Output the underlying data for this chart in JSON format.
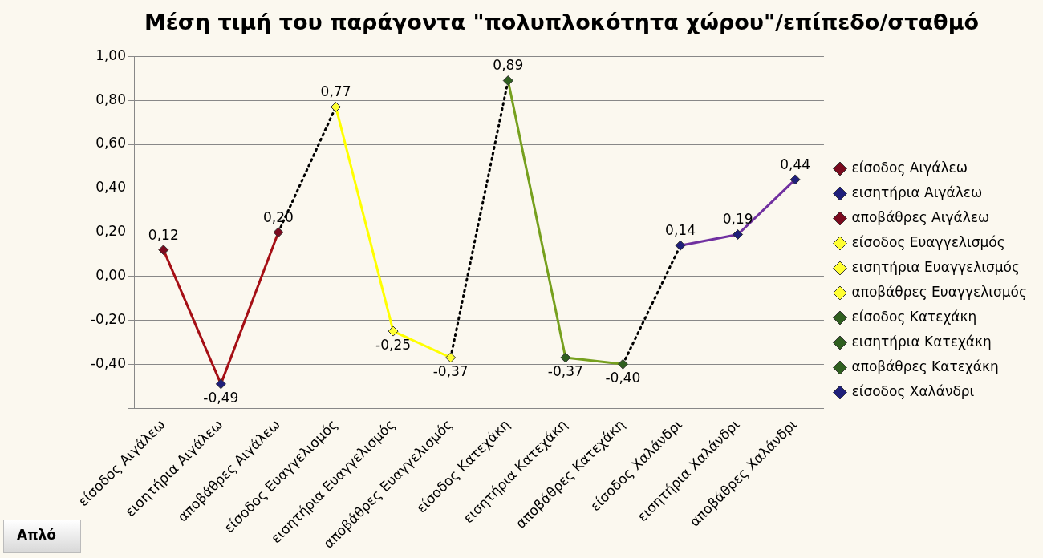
{
  "chart_data": {
    "type": "line",
    "title": "Μέση τιμή του παράγοντα \"πολυπλοκότητα χώρου\"/επίπεδο/σταθμό",
    "categories": [
      "είσοδος Αιγάλεω",
      "εισητήρια Αιγάλεω",
      "αποβάθρες Αιγάλεω",
      "είσοδος Ευαγγελισμός",
      "εισητήρια Ευαγγελισμός",
      "αποβάθρες Ευαγγελισμός",
      "είσοδος Κατεχάκη",
      "εισητήρια Κατεχάκη",
      "αποβάθρες Κατεχάκη",
      "είσοδος Χαλάνδρι",
      "εισητήρια Χαλάνδρι",
      "αποβάθρες Χαλάνδρι"
    ],
    "series": [
      {
        "name": "είσοδος Αιγάλεω",
        "color": "#7a0a1e",
        "colors": [
          "#7a0a1e",
          null,
          null,
          null,
          null,
          null,
          null,
          null,
          null,
          null,
          null,
          null
        ],
        "values": [
          0.12,
          null,
          null,
          null,
          null,
          null,
          null,
          null,
          null,
          null,
          null,
          null
        ],
        "value_labels": [
          "0,12",
          null,
          null,
          null,
          null,
          null,
          null,
          null,
          null,
          null,
          null,
          null
        ]
      },
      {
        "name": "εισητήρια Αιγάλεω",
        "color": "#a50f15",
        "colors": [
          null,
          "#1f1f7a",
          null,
          null,
          null,
          null,
          null,
          null,
          null,
          null,
          null,
          null
        ],
        "values": [
          0.12,
          -0.49,
          null,
          null,
          null,
          null,
          null,
          null,
          null,
          null,
          null,
          null
        ],
        "value_labels": [
          null,
          "-0,49",
          null,
          null,
          null,
          null,
          null,
          null,
          null,
          null,
          null,
          null
        ]
      },
      {
        "name": "αποβάθρες Αιγάλεω",
        "color": "#a50f15",
        "colors": [
          null,
          null,
          "#7a0a1e",
          null,
          null,
          null,
          null,
          null,
          null,
          null,
          null,
          null
        ],
        "values": [
          null,
          -0.49,
          0.2,
          null,
          null,
          null,
          null,
          null,
          null,
          null,
          null,
          null
        ],
        "value_labels": [
          null,
          null,
          "0,20",
          null,
          null,
          null,
          null,
          null,
          null,
          null,
          null,
          null
        ]
      },
      {
        "name": "είσοδος Ευαγγελισμός",
        "color": "#000000",
        "line_style": "dotted",
        "colors": [
          null,
          null,
          null,
          "#ffff33",
          null,
          null,
          null,
          null,
          null,
          null,
          null,
          null
        ],
        "values": [
          null,
          null,
          0.2,
          0.77,
          null,
          null,
          null,
          null,
          null,
          null,
          null,
          null
        ],
        "value_labels": [
          null,
          null,
          null,
          "0,77",
          null,
          null,
          null,
          null,
          null,
          null,
          null,
          null
        ]
      },
      {
        "name": "εισητήρια Ευαγγελισμός",
        "color": "#ffff00",
        "colors": [
          null,
          null,
          null,
          null,
          "#ffff33",
          null,
          null,
          null,
          null,
          null,
          null,
          null
        ],
        "values": [
          null,
          null,
          null,
          0.77,
          -0.25,
          null,
          null,
          null,
          null,
          null,
          null,
          null
        ],
        "value_labels": [
          null,
          null,
          null,
          null,
          "-0,25",
          null,
          null,
          null,
          null,
          null,
          null,
          null
        ]
      },
      {
        "name": "αποβάθρες Ευαγγελισμός",
        "color": "#ffff00",
        "colors": [
          null,
          null,
          null,
          null,
          null,
          "#ffff33",
          null,
          null,
          null,
          null,
          null,
          null
        ],
        "values": [
          null,
          null,
          null,
          null,
          -0.25,
          -0.37,
          null,
          null,
          null,
          null,
          null,
          null
        ],
        "value_labels": [
          null,
          null,
          null,
          null,
          null,
          "-0,37",
          null,
          null,
          null,
          null,
          null,
          null
        ]
      },
      {
        "name": "είσοδος Κατεχάκη",
        "color": "#000000",
        "line_style": "dotted",
        "colors": [
          null,
          null,
          null,
          null,
          null,
          null,
          "#2f5f1f",
          null,
          null,
          null,
          null,
          null
        ],
        "values": [
          null,
          null,
          null,
          null,
          null,
          -0.37,
          0.89,
          null,
          null,
          null,
          null,
          null
        ],
        "value_labels": [
          null,
          null,
          null,
          null,
          null,
          null,
          "0,89",
          null,
          null,
          null,
          null,
          null
        ]
      },
      {
        "name": "εισητήρια Κατεχάκη",
        "color": "#76a01e",
        "colors": [
          null,
          null,
          null,
          null,
          null,
          null,
          null,
          "#2f5f1f",
          null,
          null,
          null,
          null
        ],
        "values": [
          null,
          null,
          null,
          null,
          null,
          null,
          0.89,
          -0.37,
          null,
          null,
          null,
          null
        ],
        "value_labels": [
          null,
          null,
          null,
          null,
          null,
          null,
          null,
          "-0,37",
          null,
          null,
          null,
          null
        ]
      },
      {
        "name": "αποβάθρες Κατεχάκη",
        "color": "#76a01e",
        "colors": [
          null,
          null,
          null,
          null,
          null,
          null,
          null,
          null,
          "#2f5f1f",
          null,
          null,
          null
        ],
        "values": [
          null,
          null,
          null,
          null,
          null,
          null,
          null,
          -0.37,
          -0.4,
          null,
          null,
          null
        ],
        "value_labels": [
          null,
          null,
          null,
          null,
          null,
          null,
          null,
          null,
          "-0,40",
          null,
          null,
          null
        ]
      },
      {
        "name": "είσοδος Χαλάνδρι",
        "color": "#000000",
        "line_style": "dotted",
        "colors": [
          null,
          null,
          null,
          null,
          null,
          null,
          null,
          null,
          null,
          "#1f1f7a",
          null,
          null
        ],
        "values": [
          null,
          null,
          null,
          null,
          null,
          null,
          null,
          null,
          -0.4,
          0.14,
          null,
          null
        ],
        "value_labels": [
          null,
          null,
          null,
          null,
          null,
          null,
          null,
          null,
          null,
          "0,14",
          null,
          null
        ]
      },
      {
        "color": "#7030a0",
        "colors": [
          null,
          null,
          null,
          null,
          null,
          null,
          null,
          null,
          null,
          null,
          "#1f1f7a",
          null
        ],
        "values": [
          null,
          null,
          null,
          null,
          null,
          null,
          null,
          null,
          null,
          0.14,
          0.19,
          null
        ],
        "value_labels": [
          null,
          null,
          null,
          null,
          null,
          null,
          null,
          null,
          null,
          null,
          "0,19",
          null
        ]
      },
      {
        "color": "#7030a0",
        "colors": [
          null,
          null,
          null,
          null,
          null,
          null,
          null,
          null,
          null,
          null,
          null,
          "#1f1f7a"
        ],
        "values": [
          null,
          null,
          null,
          null,
          null,
          null,
          null,
          null,
          null,
          null,
          0.19,
          0.44
        ],
        "value_labels": [
          null,
          null,
          null,
          null,
          null,
          null,
          null,
          null,
          null,
          null,
          null,
          "0,44"
        ]
      }
    ],
    "ylim": [
      -0.6,
      1.0
    ],
    "yticks": [
      {
        "value": -0.6,
        "label": null
      },
      {
        "value": -0.4,
        "label": "-0,40"
      },
      {
        "value": -0.2,
        "label": "-0,20"
      },
      {
        "value": 0,
        "label": "0,00"
      },
      {
        "value": 0.2,
        "label": "0,20"
      },
      {
        "value": 0.4,
        "label": "0,40"
      },
      {
        "value": 0.6,
        "label": "0,60"
      },
      {
        "value": 0.8,
        "label": "0,80"
      },
      {
        "value": 1.0,
        "label": "1,00"
      }
    ],
    "grid": "y",
    "legend": "right",
    "marker": "diamond",
    "annotations": [
      "Απλό"
    ]
  }
}
